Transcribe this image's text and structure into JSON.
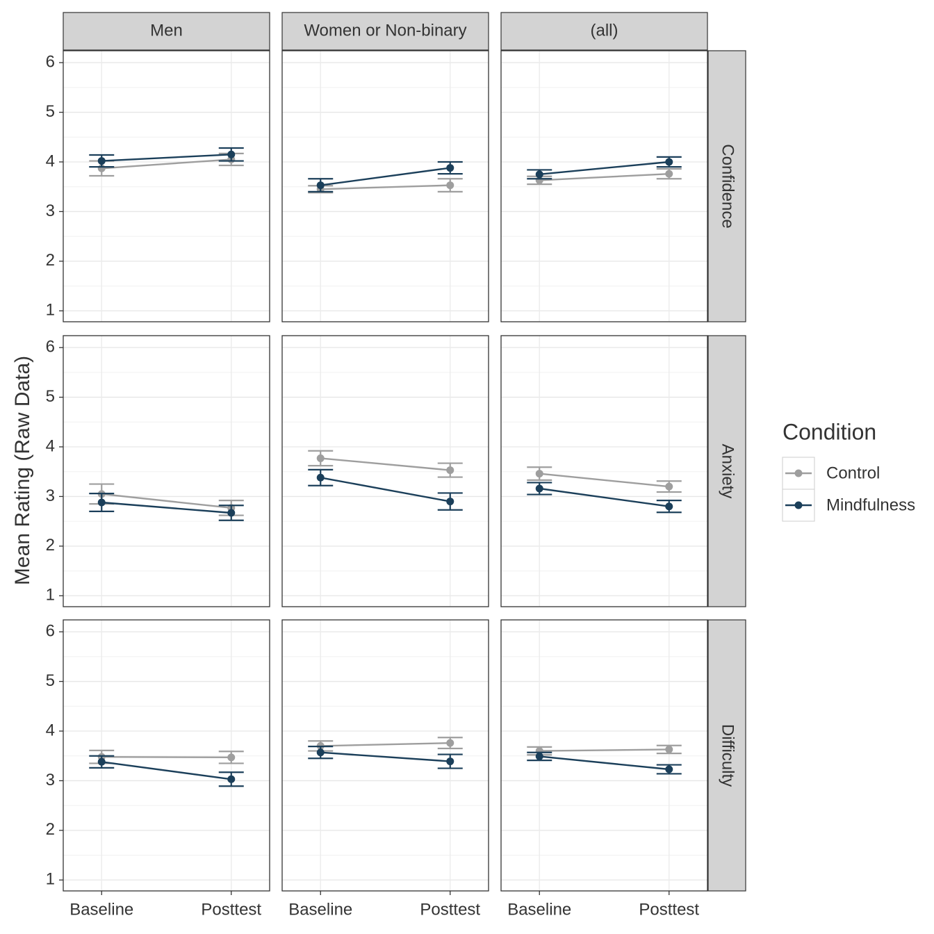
{
  "chart_data": {
    "type": "line",
    "ylabel": "Mean Rating (Raw Data)",
    "legend_title": "Condition",
    "facet_cols": [
      "Men",
      "Women or Non-binary",
      "(all)"
    ],
    "facet_rows": [
      "Confidence",
      "Anxiety",
      "Difficulty"
    ],
    "categories": [
      "Baseline",
      "Posttest"
    ],
    "ylim": [
      0.78,
      6.24
    ],
    "yticks": [
      1,
      2,
      3,
      4,
      5,
      6
    ],
    "grid": true,
    "series": [
      {
        "name": "Control",
        "color": "#9e9e9e"
      },
      {
        "name": "Mindfulness",
        "color": "#1b3f5a"
      }
    ],
    "panels": [
      [
        {
          "series": [
            {
              "values": [
                3.87,
                4.05
              ],
              "errors": [
                0.15,
                0.12
              ]
            },
            {
              "values": [
                4.02,
                4.15
              ],
              "errors": [
                0.12,
                0.13
              ]
            }
          ]
        },
        {
          "series": [
            {
              "values": [
                3.45,
                3.53
              ],
              "errors": [
                0.07,
                0.13
              ]
            },
            {
              "values": [
                3.53,
                3.88
              ],
              "errors": [
                0.13,
                0.12
              ]
            }
          ]
        },
        {
          "series": [
            {
              "values": [
                3.63,
                3.76
              ],
              "errors": [
                0.08,
                0.1
              ]
            },
            {
              "values": [
                3.75,
                4.0
              ],
              "errors": [
                0.09,
                0.1
              ]
            }
          ]
        }
      ],
      [
        {
          "series": [
            {
              "values": [
                3.05,
                2.77
              ],
              "errors": [
                0.2,
                0.15
              ]
            },
            {
              "values": [
                2.88,
                2.67
              ],
              "errors": [
                0.18,
                0.15
              ]
            }
          ]
        },
        {
          "series": [
            {
              "values": [
                3.77,
                3.53
              ],
              "errors": [
                0.15,
                0.14
              ]
            },
            {
              "values": [
                3.38,
                2.9
              ],
              "errors": [
                0.16,
                0.17
              ]
            }
          ]
        },
        {
          "series": [
            {
              "values": [
                3.46,
                3.2
              ],
              "errors": [
                0.13,
                0.11
              ]
            },
            {
              "values": [
                3.16,
                2.8
              ],
              "errors": [
                0.12,
                0.12
              ]
            }
          ]
        }
      ],
      [
        {
          "series": [
            {
              "values": [
                3.48,
                3.47
              ],
              "errors": [
                0.13,
                0.12
              ]
            },
            {
              "values": [
                3.38,
                3.03
              ],
              "errors": [
                0.12,
                0.14
              ]
            }
          ]
        },
        {
          "series": [
            {
              "values": [
                3.7,
                3.76
              ],
              "errors": [
                0.1,
                0.11
              ]
            },
            {
              "values": [
                3.57,
                3.39
              ],
              "errors": [
                0.12,
                0.14
              ]
            }
          ]
        },
        {
          "series": [
            {
              "values": [
                3.6,
                3.63
              ],
              "errors": [
                0.08,
                0.08
              ]
            },
            {
              "values": [
                3.49,
                3.23
              ],
              "errors": [
                0.08,
                0.09
              ]
            }
          ]
        }
      ]
    ]
  }
}
